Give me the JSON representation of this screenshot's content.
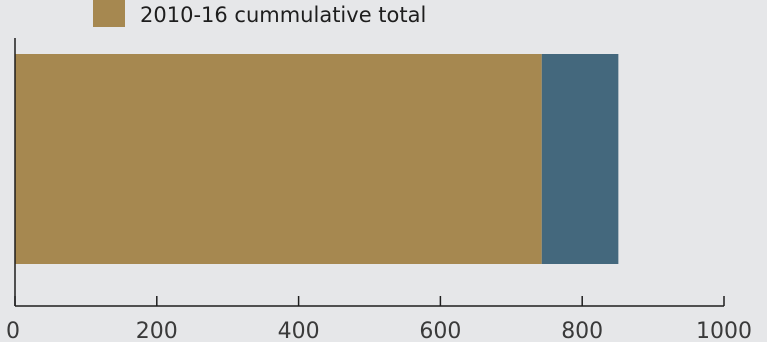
{
  "chart_data": {
    "type": "bar",
    "orientation": "horizontal",
    "stacked": true,
    "categories": [
      ""
    ],
    "series": [
      {
        "name": "2010-16 cummulative total",
        "values": [
          743
        ],
        "color": "#a68850"
      },
      {
        "name": "",
        "values": [
          108
        ],
        "color": "#44687d"
      }
    ],
    "xlim": [
      0,
      1000
    ],
    "xticks": [
      "0",
      "200",
      "400",
      "600",
      "800",
      "1000"
    ],
    "grid": false,
    "legend_position": "top-left",
    "axis_color": "#1e1e1e",
    "tick_label_color": "#3a3a3a"
  }
}
